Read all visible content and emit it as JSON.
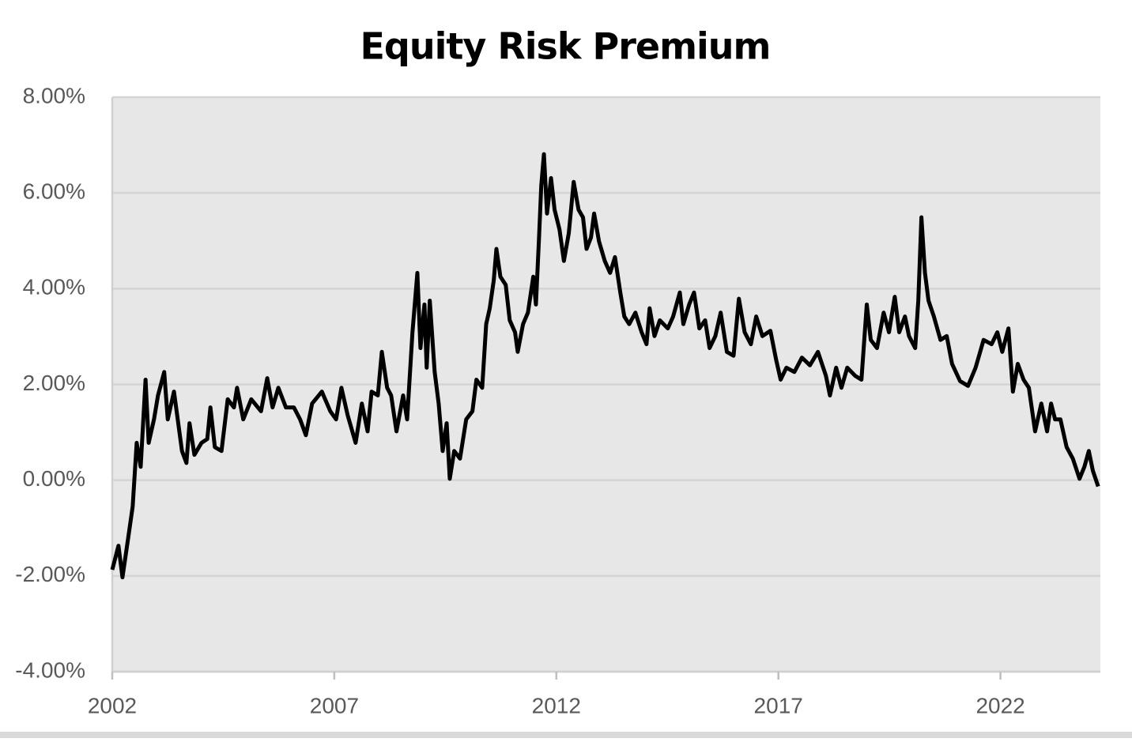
{
  "chart_data": {
    "type": "line",
    "title": "Equity Risk Premium",
    "x": [
      2002.0,
      2002.14,
      2002.23,
      2002.36,
      2002.46,
      2002.55,
      2002.64,
      2002.75,
      2002.82,
      2002.94,
      2003.03,
      2003.17,
      2003.25,
      2003.39,
      2003.57,
      2003.67,
      2003.74,
      2003.85,
      2004.01,
      2004.14,
      2004.21,
      2004.31,
      2004.46,
      2004.6,
      2004.74,
      2004.81,
      2004.95,
      2005.13,
      2005.35,
      2005.49,
      2005.61,
      2005.74,
      2005.91,
      2006.09,
      2006.23,
      2006.36,
      2006.5,
      2006.72,
      2006.91,
      2007.04,
      2007.16,
      2007.3,
      2007.48,
      2007.62,
      2007.75,
      2007.84,
      2007.98,
      2008.07,
      2008.19,
      2008.28,
      2008.4,
      2008.55,
      2008.64,
      2008.76,
      2008.87,
      2008.94,
      2009.03,
      2009.08,
      2009.15,
      2009.26,
      2009.35,
      2009.44,
      2009.53,
      2009.6,
      2009.7,
      2009.83,
      2009.97,
      2010.11,
      2010.2,
      2010.33,
      2010.42,
      2010.5,
      2010.59,
      2010.65,
      2010.74,
      2010.86,
      2010.95,
      2011.07,
      2011.13,
      2011.25,
      2011.36,
      2011.48,
      2011.54,
      2011.61,
      2011.66,
      2011.72,
      2011.79,
      2011.88,
      2011.96,
      2012.07,
      2012.17,
      2012.28,
      2012.39,
      2012.5,
      2012.6,
      2012.68,
      2012.78,
      2012.85,
      2012.96,
      2013.09,
      2013.21,
      2013.32,
      2013.44,
      2013.53,
      2013.64,
      2013.78,
      2013.92,
      2014.03,
      2014.1,
      2014.21,
      2014.33,
      2014.51,
      2014.63,
      2014.78,
      2014.86,
      2014.99,
      2015.1,
      2015.22,
      2015.35,
      2015.45,
      2015.58,
      2015.7,
      2015.84,
      2015.99,
      2016.11,
      2016.24,
      2016.38,
      2016.5,
      2016.64,
      2016.82,
      2016.95,
      2017.05,
      2017.18,
      2017.36,
      2017.53,
      2017.71,
      2017.89,
      2018.07,
      2018.16,
      2018.3,
      2018.42,
      2018.55,
      2018.73,
      2018.87,
      2018.99,
      2019.08,
      2019.22,
      2019.37,
      2019.49,
      2019.62,
      2019.72,
      2019.85,
      2019.94,
      2020.08,
      2020.15,
      2020.22,
      2020.3,
      2020.38,
      2020.5,
      2020.65,
      2020.79,
      2020.91,
      2021.09,
      2021.27,
      2021.44,
      2021.62,
      2021.8,
      2021.93,
      2022.04,
      2022.18,
      2022.28,
      2022.39,
      2022.52,
      2022.64,
      2022.78,
      2022.92,
      2023.05,
      2023.14,
      2023.23,
      2023.35,
      2023.49,
      2023.63,
      2023.78,
      2023.89,
      2023.99,
      2024.08,
      2024.2
    ],
    "values": [
      -1.87,
      -1.37,
      -2.03,
      -1.2,
      -0.55,
      0.78,
      0.28,
      2.1,
      0.78,
      1.27,
      1.77,
      2.26,
      1.27,
      1.85,
      0.61,
      0.36,
      1.19,
      0.53,
      0.78,
      0.86,
      1.52,
      0.69,
      0.61,
      1.69,
      1.52,
      1.93,
      1.27,
      1.69,
      1.44,
      2.13,
      1.52,
      1.93,
      1.52,
      1.52,
      1.27,
      0.94,
      1.6,
      1.85,
      1.44,
      1.27,
      1.93,
      1.36,
      0.78,
      1.6,
      1.02,
      1.85,
      1.77,
      2.68,
      1.93,
      1.77,
      1.02,
      1.77,
      1.27,
      3.09,
      4.33,
      2.76,
      3.67,
      2.35,
      3.75,
      2.26,
      1.6,
      0.61,
      1.19,
      0.03,
      0.61,
      0.45,
      1.27,
      1.44,
      2.1,
      1.93,
      3.26,
      3.59,
      4.17,
      4.83,
      4.25,
      4.08,
      3.34,
      3.09,
      2.68,
      3.26,
      3.5,
      4.25,
      3.67,
      5.07,
      6.15,
      6.81,
      5.57,
      6.31,
      5.65,
      5.24,
      4.58,
      5.16,
      6.23,
      5.65,
      5.49,
      4.83,
      5.07,
      5.57,
      4.99,
      4.58,
      4.33,
      4.66,
      3.92,
      3.42,
      3.26,
      3.5,
      3.09,
      2.84,
      3.59,
      3.01,
      3.34,
      3.17,
      3.42,
      3.92,
      3.26,
      3.67,
      3.92,
      3.17,
      3.34,
      2.76,
      3.01,
      3.5,
      2.68,
      2.6,
      3.79,
      3.09,
      2.84,
      3.42,
      3.01,
      3.12,
      2.51,
      2.1,
      2.35,
      2.26,
      2.56,
      2.4,
      2.68,
      2.18,
      1.77,
      2.35,
      1.93,
      2.35,
      2.18,
      2.1,
      3.67,
      2.93,
      2.76,
      3.5,
      3.09,
      3.83,
      3.09,
      3.42,
      3.01,
      2.76,
      3.75,
      5.49,
      4.33,
      3.75,
      3.42,
      2.93,
      3.01,
      2.43,
      2.07,
      1.97,
      2.35,
      2.93,
      2.84,
      3.09,
      2.68,
      3.17,
      1.85,
      2.43,
      2.1,
      1.93,
      1.02,
      1.6,
      1.02,
      1.6,
      1.27,
      1.27,
      0.69,
      0.45,
      0.03,
      0.28,
      0.61,
      0.2,
      -0.13
    ],
    "color": "#000000",
    "xlim": [
      2002,
      2024.25
    ],
    "xticks": [
      2002,
      2007,
      2012,
      2017,
      2022
    ],
    "ylim": [
      -4,
      8
    ],
    "yticks": [
      {
        "value": -4,
        "label": "-4.00%"
      },
      {
        "value": -2,
        "label": "-2.00%"
      },
      {
        "value": 0,
        "label": "0.00%"
      },
      {
        "value": 2,
        "label": "2.00%"
      },
      {
        "value": 4,
        "label": "4.00%"
      },
      {
        "value": 6,
        "label": "6.00%"
      },
      {
        "value": 8,
        "label": "8.00%"
      }
    ],
    "grid": true
  }
}
